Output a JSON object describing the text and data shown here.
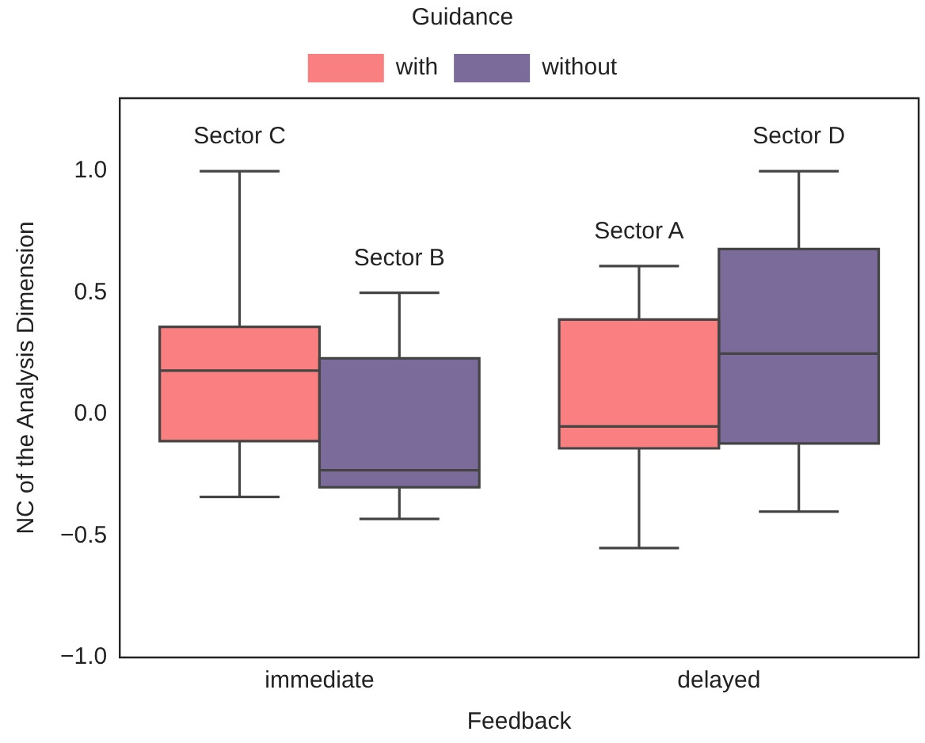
{
  "chart_data": {
    "type": "box",
    "xlabel": "Feedback",
    "ylabel": "NC of the Analysis Dimension",
    "legend_title": "Guidance",
    "legend": "top",
    "grid": false,
    "categories": [
      "immediate",
      "delayed"
    ],
    "ylim": [
      -1,
      1.3
    ],
    "yticks": [
      {
        "value": -1,
        "label": "−1.0"
      },
      {
        "value": -0.5,
        "label": "−0.5"
      },
      {
        "value": 0,
        "label": "0.0"
      },
      {
        "value": 0.5,
        "label": "0.5"
      },
      {
        "value": 1,
        "label": "1.0"
      }
    ],
    "series": [
      {
        "name": "with",
        "color": "#fa7f80",
        "boxes": [
          {
            "low": -0.34,
            "q1": -0.11,
            "median": 0.18,
            "q3": 0.36,
            "high": 1.0
          },
          {
            "low": -0.55,
            "q1": -0.14,
            "median": -0.05,
            "q3": 0.39,
            "high": 0.61
          }
        ]
      },
      {
        "name": "without",
        "color": "#7b6b9b",
        "boxes": [
          {
            "low": -0.43,
            "q1": -0.3,
            "median": -0.23,
            "q3": 0.23,
            "high": 0.5
          },
          {
            "low": -0.4,
            "q1": -0.12,
            "median": 0.25,
            "q3": 0.68,
            "high": 1.0
          }
        ]
      }
    ],
    "annotations": [
      "Sector C",
      "Sector B",
      "Sector A",
      "Sector D"
    ]
  }
}
